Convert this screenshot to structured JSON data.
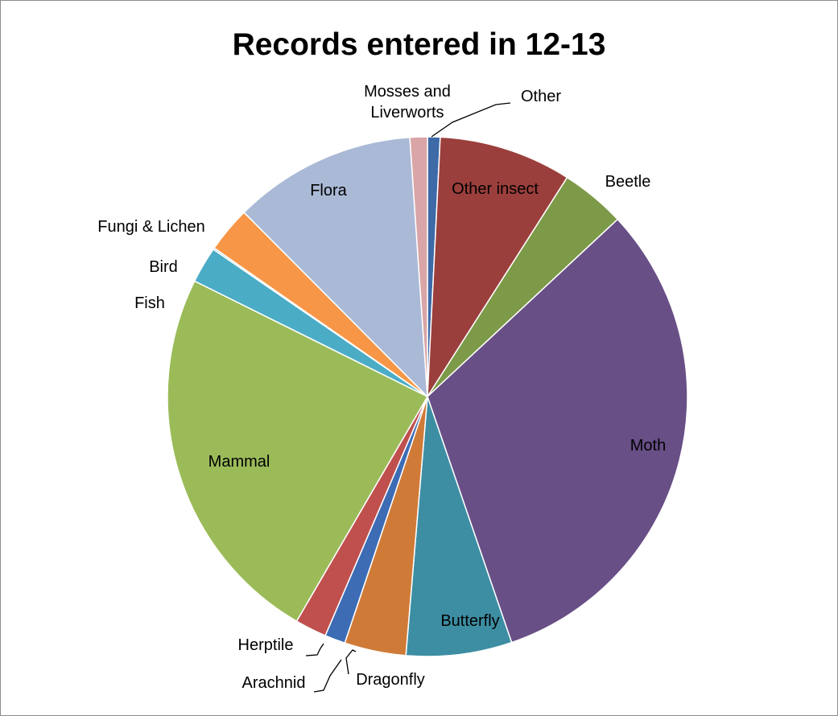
{
  "chart_data": {
    "type": "pie",
    "title": "Records entered in 12-13",
    "slices": [
      {
        "label": "Other",
        "value": 0.8,
        "color": "#3e6aa8"
      },
      {
        "label": "Other insect",
        "value": 8.4,
        "color": "#9b3f3c"
      },
      {
        "label": "Beetle",
        "value": 4.1,
        "color": "#7d9a48"
      },
      {
        "label": "Moth",
        "value": 32.3,
        "color": "#684f86"
      },
      {
        "label": "Butterfly",
        "value": 6.7,
        "color": "#3d8ea3"
      },
      {
        "label": "Dragonfly",
        "value": 3.9,
        "color": "#cf7b37"
      },
      {
        "label": "Arachnid",
        "value": 1.3,
        "color": "#3d6cb5"
      },
      {
        "label": "Herptile",
        "value": 2.0,
        "color": "#c0504d"
      },
      {
        "label": "Mammal",
        "value": 24.4,
        "color": "#9bbb59"
      },
      {
        "label": "Fish",
        "value": 2.3,
        "color": "#4bacc6"
      },
      {
        "label": "Bird",
        "value": 0.1,
        "color": "#4bacc6"
      },
      {
        "label": "Fungi & Lichen",
        "value": 2.9,
        "color": "#f79646"
      },
      {
        "label": "Flora",
        "value": 11.6,
        "color": "#aab9d6"
      },
      {
        "label": "Mosses and\nLiverworts",
        "value": 1.1,
        "color": "#d9a5a6"
      }
    ],
    "legend": "none",
    "data_labels": "category name"
  }
}
